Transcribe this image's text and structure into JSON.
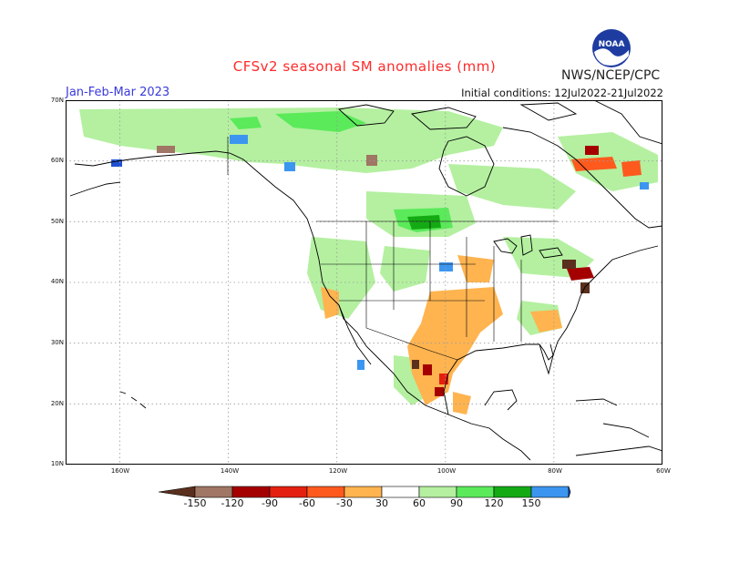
{
  "header": {
    "title": "CFSv2 seasonal SM anomalies (mm)",
    "period": "Jan-Feb-Mar 2023",
    "initial_conditions": "Initial conditions: 12Jul2022-21Jul2022",
    "agency": "NWS/NCEP/CPC",
    "logo_text": "NOAA"
  },
  "map": {
    "lat_labels": [
      "70N",
      "60N",
      "50N",
      "40N",
      "30N",
      "20N",
      "10N"
    ],
    "lon_labels": [
      "160W",
      "140W",
      "120W",
      "100W",
      "80W",
      "60W"
    ],
    "lat_range": [
      10,
      70
    ],
    "lon_range": [
      -170,
      -60
    ],
    "grid": true
  },
  "legend": {
    "labels": [
      "-150",
      "-120",
      "-90",
      "-60",
      "-30",
      "30",
      "60",
      "90",
      "120",
      "150"
    ],
    "colors": [
      "#5a2f1d",
      "#a07664",
      "#a50000",
      "#e42010",
      "#ff5a1e",
      "#ffb450",
      "#ffffff",
      "#b4f0a0",
      "#5aea5a",
      "#14aa14",
      "#3c96f0",
      "#1e50d2"
    ]
  }
}
